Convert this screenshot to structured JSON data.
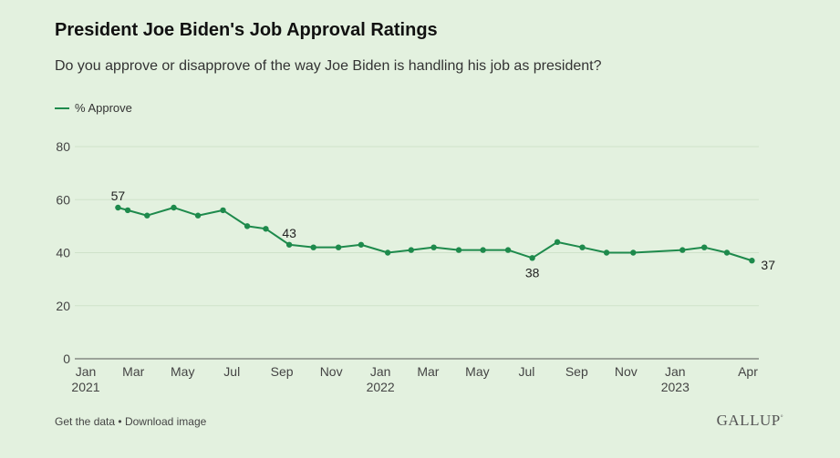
{
  "title": "President Joe Biden's Job Approval Ratings",
  "subtitle": "Do you approve or disapprove of the way Joe Biden is handling his job as president?",
  "legend_label": "% Approve",
  "footer": {
    "get_data": "Get the data",
    "separator": "•",
    "download": "Download image"
  },
  "brand": "GALLUP",
  "brand_mark": "°",
  "colors": {
    "series": "#1e8a4c",
    "grid": "#cfe2ca",
    "axis": "#555555",
    "background": "#e3f1df"
  },
  "chart_data": {
    "type": "line",
    "xlabel": "",
    "ylabel": "",
    "ylim": [
      0,
      80
    ],
    "yticks": [
      0,
      20,
      40,
      60,
      80
    ],
    "xticks": [
      {
        "date": "2021-01-01",
        "label": "Jan",
        "year": "2021"
      },
      {
        "date": "2021-03-01",
        "label": "Mar",
        "year": ""
      },
      {
        "date": "2021-05-01",
        "label": "May",
        "year": ""
      },
      {
        "date": "2021-07-01",
        "label": "Jul",
        "year": ""
      },
      {
        "date": "2021-09-01",
        "label": "Sep",
        "year": ""
      },
      {
        "date": "2021-11-01",
        "label": "Nov",
        "year": ""
      },
      {
        "date": "2022-01-01",
        "label": "Jan",
        "year": "2022"
      },
      {
        "date": "2022-03-01",
        "label": "Mar",
        "year": ""
      },
      {
        "date": "2022-05-01",
        "label": "May",
        "year": ""
      },
      {
        "date": "2022-07-01",
        "label": "Jul",
        "year": ""
      },
      {
        "date": "2022-09-01",
        "label": "Sep",
        "year": ""
      },
      {
        "date": "2022-11-01",
        "label": "Nov",
        "year": ""
      },
      {
        "date": "2023-01-01",
        "label": "Jan",
        "year": "2023"
      },
      {
        "date": "2023-04-01",
        "label": "Apr",
        "year": ""
      }
    ],
    "grid": true,
    "legend": "top-left",
    "series": [
      {
        "name": "% Approve",
        "points": [
          {
            "x": "2021-02-10",
            "y": 57,
            "label": "57"
          },
          {
            "x": "2021-02-22",
            "y": 56
          },
          {
            "x": "2021-03-18",
            "y": 54
          },
          {
            "x": "2021-04-20",
            "y": 57
          },
          {
            "x": "2021-05-20",
            "y": 54
          },
          {
            "x": "2021-06-20",
            "y": 56
          },
          {
            "x": "2021-07-20",
            "y": 50
          },
          {
            "x": "2021-08-12",
            "y": 49
          },
          {
            "x": "2021-09-10",
            "y": 43,
            "label": "43"
          },
          {
            "x": "2021-10-10",
            "y": 42
          },
          {
            "x": "2021-11-10",
            "y": 42
          },
          {
            "x": "2021-12-08",
            "y": 43
          },
          {
            "x": "2022-01-10",
            "y": 40
          },
          {
            "x": "2022-02-08",
            "y": 41
          },
          {
            "x": "2022-03-08",
            "y": 42
          },
          {
            "x": "2022-04-08",
            "y": 41
          },
          {
            "x": "2022-05-08",
            "y": 41
          },
          {
            "x": "2022-06-08",
            "y": 41
          },
          {
            "x": "2022-07-08",
            "y": 38,
            "label": "38",
            "label_pos": "below"
          },
          {
            "x": "2022-08-08",
            "y": 44
          },
          {
            "x": "2022-09-08",
            "y": 42
          },
          {
            "x": "2022-10-08",
            "y": 40
          },
          {
            "x": "2022-11-10",
            "y": 40
          },
          {
            "x": "2023-01-10",
            "y": 41
          },
          {
            "x": "2023-02-06",
            "y": 42
          },
          {
            "x": "2023-03-06",
            "y": 40
          },
          {
            "x": "2023-04-06",
            "y": 37,
            "label": "37",
            "label_pos": "right"
          }
        ]
      }
    ]
  }
}
